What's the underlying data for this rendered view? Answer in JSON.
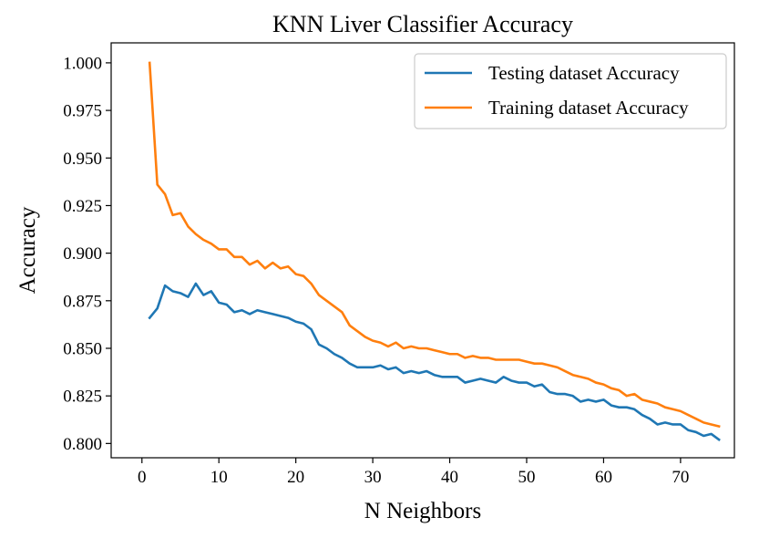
{
  "chart_data": {
    "type": "line",
    "title": "KNN Liver Classifier Accuracy",
    "xlabel": "N Neighbors",
    "ylabel": "Accuracy",
    "xlim": [
      -4,
      77
    ],
    "ylim": [
      0.7925,
      1.0105
    ],
    "xticks": [
      0,
      10,
      20,
      30,
      40,
      50,
      60,
      70
    ],
    "yticks": [
      0.8,
      0.825,
      0.85,
      0.875,
      0.9,
      0.925,
      0.95,
      0.975,
      1.0
    ],
    "ytick_labels": [
      "0.800",
      "0.825",
      "0.850",
      "0.875",
      "0.900",
      "0.925",
      "0.950",
      "0.975",
      "1.000"
    ],
    "grid": false,
    "legend_position": "top-right",
    "x": [
      1,
      2,
      3,
      4,
      5,
      6,
      7,
      8,
      9,
      10,
      11,
      12,
      13,
      14,
      15,
      16,
      17,
      18,
      19,
      20,
      21,
      22,
      23,
      24,
      25,
      26,
      27,
      28,
      29,
      30,
      31,
      32,
      33,
      34,
      35,
      36,
      37,
      38,
      39,
      40,
      41,
      42,
      43,
      44,
      45,
      46,
      47,
      48,
      49,
      50,
      51,
      52,
      53,
      54,
      55,
      56,
      57,
      58,
      59,
      60,
      61,
      62,
      63,
      64,
      65,
      66,
      67,
      68,
      69,
      70,
      71,
      72,
      73,
      74,
      75
    ],
    "series": [
      {
        "name": "Testing dataset Accuracy",
        "color": "#1f77b4",
        "values": [
          0.866,
          0.871,
          0.883,
          0.88,
          0.879,
          0.877,
          0.884,
          0.878,
          0.88,
          0.874,
          0.873,
          0.869,
          0.87,
          0.868,
          0.87,
          0.869,
          0.868,
          0.867,
          0.866,
          0.864,
          0.863,
          0.86,
          0.852,
          0.85,
          0.847,
          0.845,
          0.842,
          0.84,
          0.84,
          0.84,
          0.841,
          0.839,
          0.84,
          0.837,
          0.838,
          0.837,
          0.838,
          0.836,
          0.835,
          0.835,
          0.835,
          0.832,
          0.833,
          0.834,
          0.833,
          0.832,
          0.835,
          0.833,
          0.832,
          0.832,
          0.83,
          0.831,
          0.827,
          0.826,
          0.826,
          0.825,
          0.822,
          0.823,
          0.822,
          0.823,
          0.82,
          0.819,
          0.819,
          0.818,
          0.815,
          0.813,
          0.81,
          0.811,
          0.81,
          0.81,
          0.807,
          0.806,
          0.804,
          0.805,
          0.802
        ]
      },
      {
        "name": "Training dataset Accuracy",
        "color": "#ff7f0e",
        "values": [
          1.0,
          0.936,
          0.931,
          0.92,
          0.921,
          0.914,
          0.91,
          0.907,
          0.905,
          0.902,
          0.902,
          0.898,
          0.898,
          0.894,
          0.896,
          0.892,
          0.895,
          0.892,
          0.893,
          0.889,
          0.888,
          0.884,
          0.878,
          0.875,
          0.872,
          0.869,
          0.862,
          0.859,
          0.856,
          0.854,
          0.853,
          0.851,
          0.853,
          0.85,
          0.851,
          0.85,
          0.85,
          0.849,
          0.848,
          0.847,
          0.847,
          0.845,
          0.846,
          0.845,
          0.845,
          0.844,
          0.844,
          0.844,
          0.844,
          0.843,
          0.842,
          0.842,
          0.841,
          0.84,
          0.838,
          0.836,
          0.835,
          0.834,
          0.832,
          0.831,
          0.829,
          0.828,
          0.825,
          0.826,
          0.823,
          0.822,
          0.821,
          0.819,
          0.818,
          0.817,
          0.815,
          0.813,
          0.811,
          0.81,
          0.809
        ]
      }
    ]
  }
}
